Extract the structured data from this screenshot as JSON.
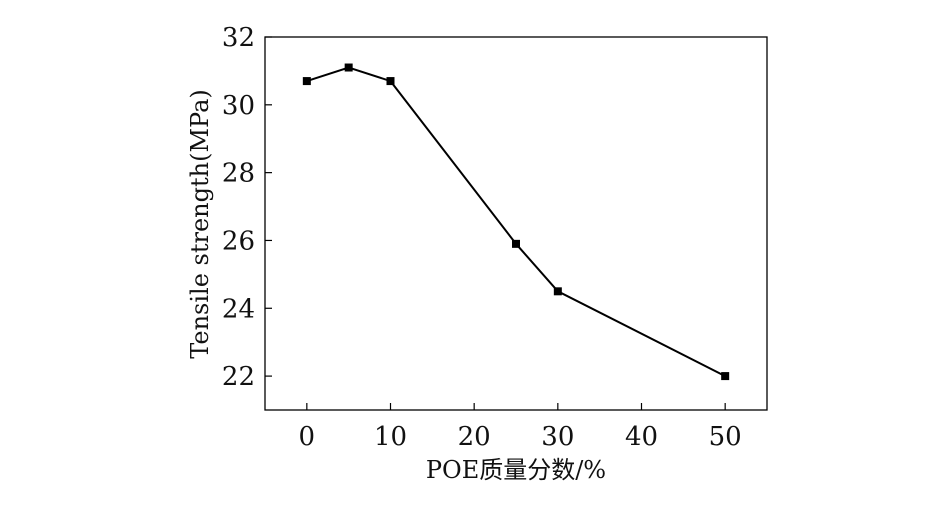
{
  "chart_data": {
    "type": "line",
    "title": "",
    "xlabel": "POE质量分数/%",
    "ylabel": "Tensile strength(MPa)",
    "xlim": [
      -5,
      55
    ],
    "ylim": [
      21,
      32
    ],
    "xticks": [
      0,
      10,
      20,
      30,
      40,
      50
    ],
    "yticks": [
      22,
      24,
      26,
      28,
      30,
      32
    ],
    "grid": false,
    "legend": "none",
    "series": [
      {
        "marker": "square",
        "color": "#000000",
        "x": [
          0,
          5,
          10,
          25,
          30,
          50
        ],
        "y": [
          30.7,
          31.1,
          30.7,
          25.9,
          24.5,
          22.0
        ]
      }
    ]
  }
}
